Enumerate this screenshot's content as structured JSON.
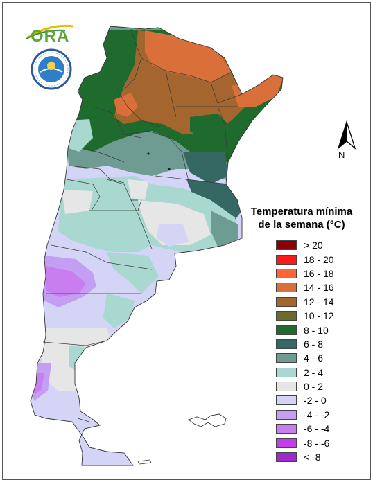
{
  "legend": {
    "title_line1": "Temperatura mínima",
    "title_line2": "de la semana (°C)",
    "items": [
      {
        "label": "> 20",
        "color": "#8b0000"
      },
      {
        "label": "18 - 20",
        "color": "#ff1a1a"
      },
      {
        "label": "16 - 18",
        "color": "#ff6633"
      },
      {
        "label": "14 - 16",
        "color": "#d9703a"
      },
      {
        "label": "12 - 14",
        "color": "#a4662e"
      },
      {
        "label": "10 - 12",
        "color": "#6b6b2e"
      },
      {
        "label": "8 - 10",
        "color": "#1f6b2e"
      },
      {
        "label": "6 - 8",
        "color": "#356862"
      },
      {
        "label": "4 - 6",
        "color": "#6e9c92"
      },
      {
        "label": "2 - 4",
        "color": "#a8d8cf"
      },
      {
        "label": "0 - 2",
        "color": "#e6e6e6"
      },
      {
        "label": "-2 - 0",
        "color": "#d4d4f7"
      },
      {
        "label": "-4 - -2",
        "color": "#c39ef3"
      },
      {
        "label": "-6 - -4",
        "color": "#c97ef0"
      },
      {
        "label": "-8 - -6",
        "color": "#c23ee6"
      },
      {
        "label": "< -8",
        "color": "#9b2cc9"
      }
    ]
  },
  "north_arrow": {
    "label": "N",
    "icon": "north-arrow-icon"
  },
  "logos": {
    "ora": "ORA",
    "smn_icon": "smn-seal-icon"
  }
}
